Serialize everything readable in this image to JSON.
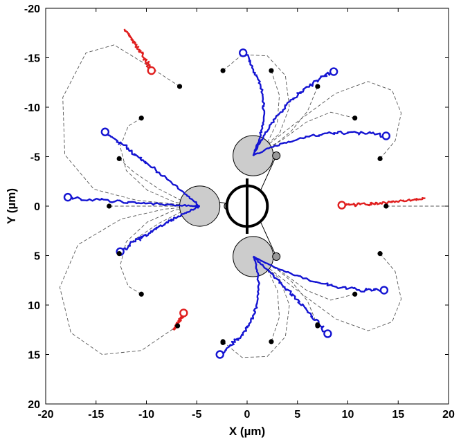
{
  "chart_data": {
    "type": "scatter",
    "xlim": [
      -20,
      20
    ],
    "ylim": [
      -20,
      20
    ],
    "y_reversed": true,
    "xticks": [
      -20,
      -15,
      -10,
      -5,
      0,
      5,
      10,
      15,
      20
    ],
    "yticks": [
      -20,
      -15,
      -10,
      -5,
      0,
      5,
      10,
      15,
      20
    ],
    "xlabel": "X (µm)",
    "ylabel": "Y (µm)",
    "grid": false,
    "colors": {
      "blue": "#1414d2",
      "red": "#e01e1e",
      "dashed": "#555555",
      "sphere_fill": "#cccccc",
      "small_sphere_fill": "#999999"
    },
    "body": {
      "central": {
        "x": 0,
        "y": 0,
        "r": 1.3
      },
      "spheres": [
        {
          "x": -4.7,
          "y": 0,
          "r": 2.0
        },
        {
          "x": 0.6,
          "y": -5.1,
          "r": 2.0
        },
        {
          "x": 0.6,
          "y": 5.1,
          "r": 2.0
        }
      ],
      "small_spheres": [
        {
          "x": -1.9,
          "y": 0,
          "r": 0.38
        },
        {
          "x": 2.9,
          "y": -5.1,
          "r": 0.38
        },
        {
          "x": 2.9,
          "y": 5.1,
          "r": 0.38
        }
      ]
    },
    "trajectories": [
      {
        "color": "blue",
        "start": [
          -4.7,
          0
        ],
        "end": [
          -17.8,
          -0.9
        ],
        "dot": [
          -13.7,
          0
        ],
        "ctrl": [
          -10.4,
          -0.2
        ]
      },
      {
        "color": "blue",
        "start": [
          -4.7,
          0
        ],
        "end": [
          -14.1,
          -7.5
        ],
        "dot": [
          -12.7,
          -4.8
        ],
        "ctrl": [
          -9.5,
          -4.1
        ]
      },
      {
        "color": "blue",
        "start": [
          -4.7,
          0
        ],
        "end": [
          -12.6,
          4.6
        ],
        "dot": [
          -10.5,
          8.9
        ],
        "ctrl": [
          -8.8,
          1.9
        ]
      },
      {
        "color": "blue",
        "start": [
          0.6,
          -5.1
        ],
        "end": [
          -0.4,
          -15.5
        ],
        "dot": [
          -2.4,
          -13.7
        ],
        "ctrl": [
          3.1,
          -10.9
        ]
      },
      {
        "color": "blue",
        "start": [
          0.6,
          -5.1
        ],
        "end": [
          8.6,
          -13.6
        ],
        "dot": [
          2.4,
          -13.7
        ],
        "ctrl": [
          3.4,
          -11.2
        ]
      },
      {
        "color": "blue",
        "start": [
          0.6,
          -5.1
        ],
        "end": [
          13.8,
          -7.1
        ],
        "dot": [
          7.0,
          -12.1
        ],
        "ctrl": [
          6.9,
          -8.3
        ]
      },
      {
        "color": "blue",
        "start": [
          0.6,
          5.1
        ],
        "end": [
          13.6,
          8.5
        ],
        "dot": [
          10.7,
          8.9
        ],
        "ctrl": [
          7.6,
          8.8
        ]
      },
      {
        "color": "blue",
        "start": [
          0.6,
          5.1
        ],
        "end": [
          8.0,
          12.9
        ],
        "dot": [
          7.0,
          12.0
        ],
        "ctrl": [
          4.2,
          8.4
        ]
      },
      {
        "color": "blue",
        "start": [
          0.6,
          5.1
        ],
        "end": [
          -2.7,
          15.0
        ],
        "dot": [
          -2.4,
          13.8
        ],
        "ctrl": [
          2.6,
          11.1
        ]
      },
      {
        "color": "red",
        "start": [
          -12.2,
          -17.9
        ],
        "end": [
          -9.5,
          -13.7
        ],
        "dot": [
          -6.7,
          -12.1
        ],
        "ctrl": [
          -10.7,
          -16.0
        ]
      },
      {
        "color": "red",
        "start": [
          17.7,
          -0.8
        ],
        "end": [
          9.4,
          -0.1
        ],
        "dot": [
          13.8,
          0
        ],
        "ctrl": [
          13.5,
          -0.2
        ]
      },
      {
        "color": "red",
        "start": [
          -7.3,
          12.5
        ],
        "end": [
          -6.3,
          10.8
        ],
        "dot": [
          -6.9,
          12.1
        ],
        "ctrl": [
          -6.8,
          11.7
        ]
      }
    ],
    "dashed_curves": [
      [
        [
          -6.7,
          -12.1
        ],
        [
          -10.0,
          -14.3
        ],
        [
          -13.2,
          -16.3
        ],
        [
          -16.0,
          -15.5
        ],
        [
          -18.3,
          -11.0
        ],
        [
          -18.1,
          -5.2
        ],
        [
          -15.2,
          -1.7
        ],
        [
          -11.0,
          -0.6
        ],
        [
          -7.1,
          -0.2
        ],
        [
          -4.7,
          0
        ]
      ],
      [
        [
          -10.5,
          -8.9
        ],
        [
          -11.8,
          -8.1
        ],
        [
          -12.6,
          -6.0
        ],
        [
          -12.0,
          -3.6
        ],
        [
          -9.9,
          -1.6
        ],
        [
          -7.2,
          -0.4
        ],
        [
          -4.7,
          0
        ]
      ],
      [
        [
          -12.7,
          -4.8
        ],
        [
          -11.2,
          -3.4
        ],
        [
          -8.7,
          -1.7
        ],
        [
          -6.4,
          -0.5
        ],
        [
          -4.7,
          0
        ]
      ],
      [
        [
          -13.7,
          0
        ],
        [
          -10.5,
          0
        ],
        [
          -7.8,
          0
        ],
        [
          -4.7,
          0
        ]
      ],
      [
        [
          -12.7,
          4.8
        ],
        [
          -11.2,
          3.4
        ],
        [
          -8.7,
          1.7
        ],
        [
          -6.4,
          0.5
        ],
        [
          -4.7,
          0
        ]
      ],
      [
        [
          -10.5,
          8.9
        ],
        [
          -11.8,
          8.1
        ],
        [
          -12.6,
          6.0
        ],
        [
          -12.0,
          3.6
        ],
        [
          -9.9,
          1.6
        ],
        [
          -7.2,
          0.4
        ],
        [
          -4.7,
          0
        ]
      ],
      [
        [
          -6.9,
          12.1
        ],
        [
          -10.5,
          14.6
        ],
        [
          -14.4,
          15.0
        ],
        [
          -17.5,
          12.8
        ],
        [
          -18.6,
          8.2
        ],
        [
          -16.8,
          3.9
        ],
        [
          -12.5,
          1.3
        ],
        [
          -8.2,
          0.3
        ],
        [
          -4.7,
          0
        ]
      ],
      [
        [
          -2.4,
          -13.7
        ],
        [
          -0.5,
          -15.3
        ],
        [
          2.0,
          -15.2
        ],
        [
          3.8,
          -13.2
        ],
        [
          4.2,
          -10.0
        ],
        [
          3.2,
          -7.3
        ],
        [
          0.6,
          -5.1
        ]
      ],
      [
        [
          2.4,
          -13.7
        ],
        [
          3.2,
          -11.2
        ],
        [
          3.0,
          -8.5
        ],
        [
          2.0,
          -6.4
        ],
        [
          0.6,
          -5.1
        ]
      ],
      [
        [
          7.0,
          -12.1
        ],
        [
          6.0,
          -9.6
        ],
        [
          4.4,
          -7.6
        ],
        [
          2.5,
          -6.0
        ],
        [
          0.6,
          -5.1
        ]
      ],
      [
        [
          10.7,
          -8.9
        ],
        [
          8.3,
          -9.5
        ],
        [
          5.9,
          -8.5
        ],
        [
          3.5,
          -6.7
        ],
        [
          0.6,
          -5.1
        ]
      ],
      [
        [
          13.2,
          -4.8
        ],
        [
          14.7,
          -6.6
        ],
        [
          15.3,
          -9.4
        ],
        [
          14.4,
          -11.7
        ],
        [
          12.0,
          -12.6
        ],
        [
          8.8,
          -11.4
        ],
        [
          5.2,
          -8.7
        ],
        [
          2.2,
          -6.3
        ],
        [
          0.6,
          -5.1
        ]
      ],
      [
        [
          13.8,
          0
        ],
        [
          17.0,
          0
        ],
        [
          19.7,
          0
        ]
      ],
      [
        [
          13.2,
          4.8
        ],
        [
          14.7,
          6.6
        ],
        [
          15.3,
          9.4
        ],
        [
          14.4,
          11.7
        ],
        [
          12.0,
          12.6
        ],
        [
          8.8,
          11.4
        ],
        [
          5.2,
          8.7
        ],
        [
          2.2,
          6.3
        ],
        [
          0.6,
          5.1
        ]
      ],
      [
        [
          10.7,
          8.9
        ],
        [
          8.3,
          9.5
        ],
        [
          5.9,
          8.5
        ],
        [
          3.5,
          6.7
        ],
        [
          0.6,
          5.1
        ]
      ],
      [
        [
          7.0,
          12.1
        ],
        [
          6.0,
          9.6
        ],
        [
          4.4,
          7.6
        ],
        [
          2.5,
          6.0
        ],
        [
          0.6,
          5.1
        ]
      ],
      [
        [
          2.4,
          13.7
        ],
        [
          3.2,
          11.2
        ],
        [
          3.0,
          8.5
        ],
        [
          2.0,
          6.4
        ],
        [
          0.6,
          5.1
        ]
      ],
      [
        [
          -2.4,
          13.7
        ],
        [
          -0.5,
          15.3
        ],
        [
          2.0,
          15.2
        ],
        [
          3.8,
          13.2
        ],
        [
          4.2,
          10.0
        ],
        [
          3.2,
          7.3
        ],
        [
          0.6,
          5.1
        ]
      ]
    ],
    "linkages": [
      [
        [
          -2.9,
          -0.4
        ],
        [
          -1.3,
          -0.2
        ]
      ],
      [
        [
          1.2,
          -1.3
        ],
        [
          2.9,
          -5.1
        ]
      ],
      [
        [
          1.2,
          1.3
        ],
        [
          2.9,
          5.1
        ]
      ]
    ]
  }
}
